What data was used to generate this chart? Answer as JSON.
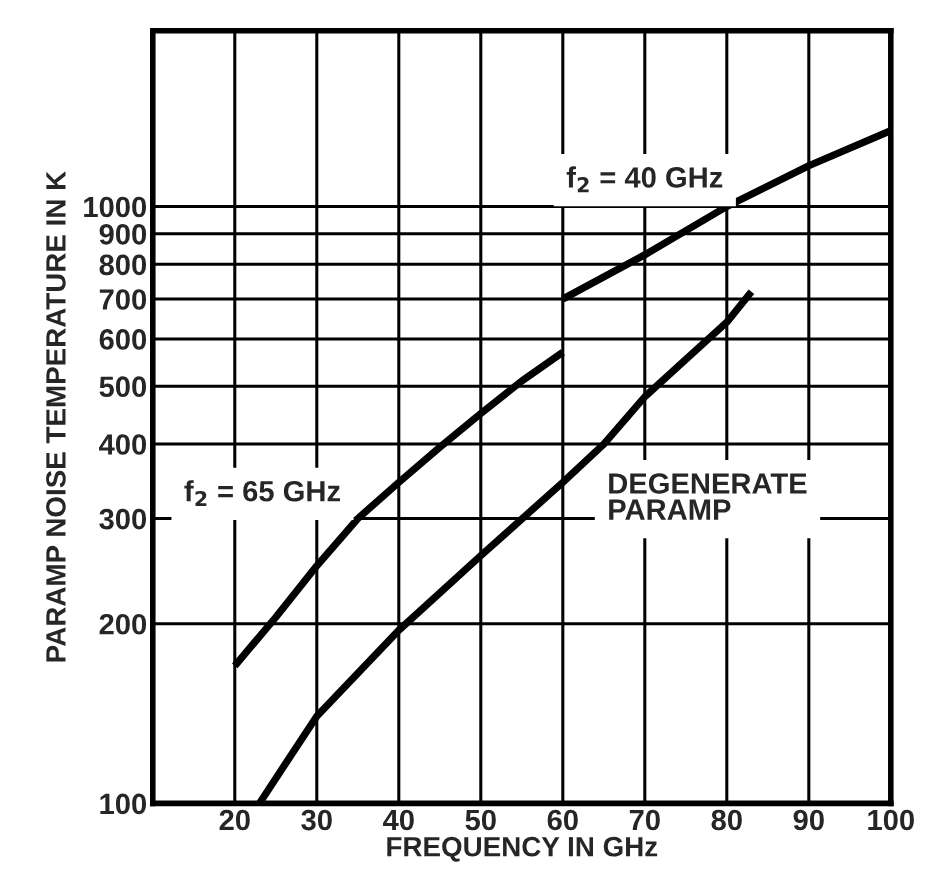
{
  "chart_data": {
    "type": "line",
    "xlabel": "FREQUENCY IN GHz",
    "ylabel": "PARAMP NOISE TEMPERATURE IN K",
    "log": "y",
    "xlim": [
      10,
      100
    ],
    "ylim": [
      100,
      1970
    ],
    "xticks": [
      20,
      30,
      40,
      50,
      60,
      70,
      80,
      90,
      100
    ],
    "yticks": [
      100,
      200,
      300,
      400,
      500,
      600,
      700,
      800,
      900,
      1000
    ],
    "grid": true,
    "legend": false,
    "marker": "none",
    "line_style": "solid",
    "series": [
      {
        "name": "f$_{2}$ = 65 GHz",
        "color": "#000000",
        "x": [
          20,
          25,
          30,
          35,
          40,
          45,
          50,
          55,
          60
        ],
        "values": [
          170,
          205,
          250,
          300,
          345,
          395,
          450,
          510,
          570
        ]
      },
      {
        "name": "f$_{2}$ = 40 GHz",
        "color": "#000000",
        "x": [
          60,
          70,
          80,
          90,
          100
        ],
        "values": [
          700,
          830,
          1000,
          1170,
          1340
        ]
      },
      {
        "name": "DEGENERATE\nPARAMP",
        "color": "#000000",
        "x": [
          23,
          30,
          40,
          50,
          60,
          65,
          70,
          80,
          83
        ],
        "values": [
          100,
          140,
          195,
          260,
          345,
          400,
          480,
          640,
          720
        ]
      }
    ]
  }
}
